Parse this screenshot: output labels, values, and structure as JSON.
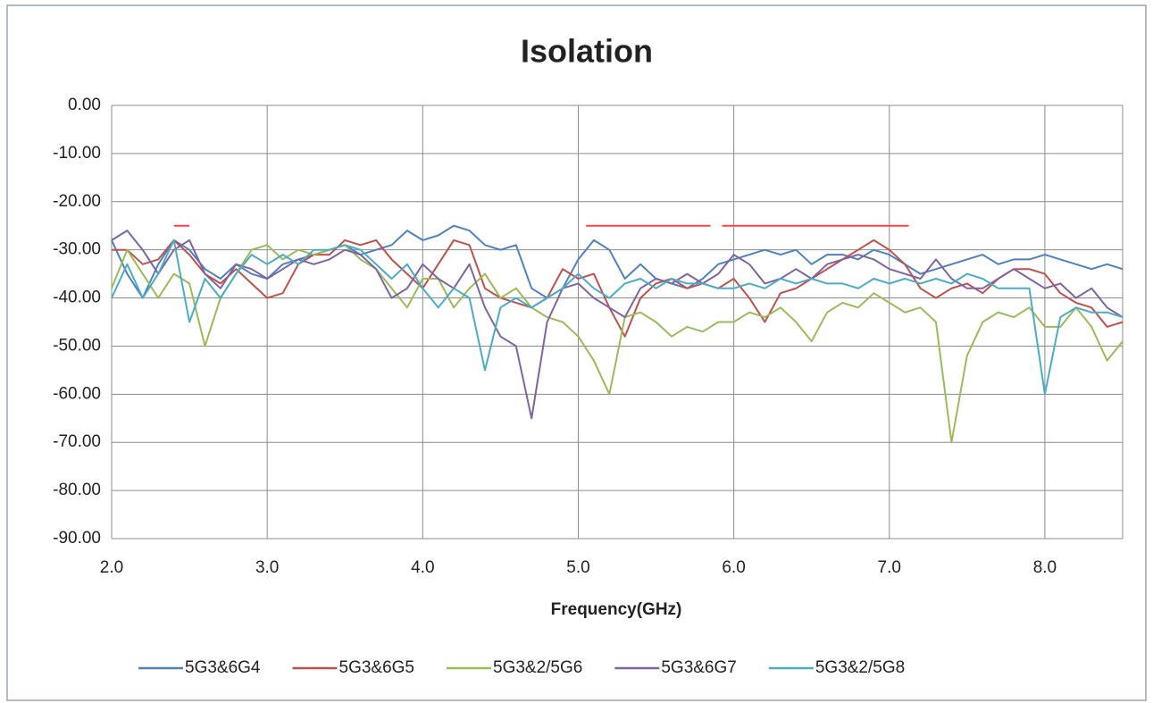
{
  "chart_data": {
    "type": "line",
    "title": "Isolation",
    "x_label": "Frequency(GHz)",
    "xlim": [
      2.0,
      8.5
    ],
    "ylim": [
      -90,
      0
    ],
    "xticks": [
      {
        "value": 2,
        "label": "2.0"
      },
      {
        "value": 3,
        "label": "3.0"
      },
      {
        "value": 4,
        "label": "4.0"
      },
      {
        "value": 5,
        "label": "5.0"
      },
      {
        "value": 6,
        "label": "6.0"
      },
      {
        "value": 7,
        "label": "7.0"
      },
      {
        "value": 8,
        "label": "8.0"
      }
    ],
    "yticks": [
      {
        "value": 0,
        "label": "0.00"
      },
      {
        "value": -10,
        "label": "-10.00"
      },
      {
        "value": -20,
        "label": "-20.00"
      },
      {
        "value": -30,
        "label": "-30.00"
      },
      {
        "value": -40,
        "label": "-40.00"
      },
      {
        "value": -50,
        "label": "-50.00"
      },
      {
        "value": -60,
        "label": "-60.00"
      },
      {
        "value": -70,
        "label": "-70.00"
      },
      {
        "value": -80,
        "label": "-80.00"
      },
      {
        "value": -90,
        "label": "-90.00"
      }
    ],
    "grid": true,
    "legend": "bottom",
    "x": [
      2.0,
      2.1,
      2.2,
      2.3,
      2.4,
      2.5,
      2.6,
      2.7,
      2.8,
      2.9,
      3.0,
      3.1,
      3.2,
      3.3,
      3.4,
      3.5,
      3.6,
      3.7,
      3.8,
      3.9,
      4.0,
      4.1,
      4.2,
      4.3,
      4.4,
      4.5,
      4.6,
      4.7,
      4.8,
      4.9,
      5.0,
      5.1,
      5.2,
      5.3,
      5.4,
      5.5,
      5.6,
      5.7,
      5.8,
      5.9,
      6.0,
      6.1,
      6.2,
      6.3,
      6.4,
      6.5,
      6.6,
      6.7,
      6.8,
      6.9,
      7.0,
      7.1,
      7.2,
      7.3,
      7.4,
      7.5,
      7.6,
      7.7,
      7.8,
      7.9,
      8.0,
      8.1,
      8.2,
      8.3,
      8.4,
      8.5
    ],
    "series": [
      {
        "name": "5G3&6G4",
        "color": "#4f81bd",
        "values": [
          -28,
          -35,
          -40,
          -33,
          -28,
          -30,
          -34,
          -36,
          -33,
          -35,
          -36,
          -33,
          -32,
          -31,
          -30,
          -29,
          -31,
          -30,
          -29,
          -26,
          -28,
          -27,
          -25,
          -26,
          -29,
          -30,
          -29,
          -38,
          -40,
          -38,
          -32,
          -28,
          -30,
          -36,
          -33,
          -36,
          -37,
          -38,
          -36,
          -33,
          -32,
          -31,
          -30,
          -31,
          -30,
          -33,
          -31,
          -31,
          -32,
          -30,
          -31,
          -33,
          -35,
          -34,
          -33,
          -32,
          -31,
          -33,
          -32,
          -32,
          -31,
          -32,
          -33,
          -34,
          -33,
          -34
        ]
      },
      {
        "name": "5G3&6G5",
        "color": "#c0504d",
        "values": [
          -30,
          -30,
          -33,
          -32,
          -28,
          -31,
          -35,
          -37,
          -34,
          -37,
          -40,
          -39,
          -33,
          -31,
          -31,
          -28,
          -29,
          -28,
          -32,
          -35,
          -38,
          -33,
          -28,
          -29,
          -38,
          -40,
          -41,
          -42,
          -40,
          -34,
          -36,
          -35,
          -42,
          -48,
          -40,
          -37,
          -36,
          -38,
          -37,
          -38,
          -36,
          -40,
          -45,
          -39,
          -38,
          -36,
          -34,
          -32,
          -30,
          -28,
          -30,
          -33,
          -38,
          -40,
          -38,
          -37,
          -39,
          -36,
          -34,
          -34,
          -35,
          -39,
          -41,
          -42,
          -46,
          -45
        ]
      },
      {
        "name": "5G3&2/5G6",
        "color": "#9bbb59",
        "values": [
          -38,
          -30,
          -35,
          -40,
          -35,
          -37,
          -50,
          -40,
          -35,
          -30,
          -29,
          -32,
          -30,
          -31,
          -30,
          -29,
          -32,
          -34,
          -38,
          -42,
          -36,
          -36,
          -42,
          -38,
          -35,
          -40,
          -38,
          -42,
          -44,
          -45,
          -48,
          -53,
          -60,
          -44,
          -43,
          -45,
          -48,
          -46,
          -47,
          -45,
          -45,
          -43,
          -44,
          -42,
          -45,
          -49,
          -43,
          -41,
          -42,
          -39,
          -41,
          -43,
          -42,
          -45,
          -70,
          -52,
          -45,
          -43,
          -44,
          -42,
          -46,
          -46,
          -42,
          -46,
          -53,
          -49
        ]
      },
      {
        "name": "5G3&6G7",
        "color": "#8064a2",
        "values": [
          -28,
          -26,
          -30,
          -35,
          -30,
          -28,
          -35,
          -38,
          -33,
          -34,
          -36,
          -34,
          -32,
          -33,
          -32,
          -30,
          -31,
          -34,
          -40,
          -38,
          -33,
          -36,
          -38,
          -33,
          -42,
          -48,
          -50,
          -65,
          -45,
          -38,
          -37,
          -40,
          -42,
          -44,
          -38,
          -36,
          -37,
          -35,
          -37,
          -35,
          -31,
          -33,
          -37,
          -36,
          -34,
          -36,
          -33,
          -32,
          -31,
          -32,
          -34,
          -35,
          -36,
          -32,
          -36,
          -38,
          -38,
          -36,
          -34,
          -36,
          -38,
          -37,
          -40,
          -38,
          -42,
          -44
        ]
      },
      {
        "name": "5G3&2/5G8",
        "color": "#4bacc6",
        "values": [
          -40,
          -33,
          -40,
          -35,
          -28,
          -45,
          -36,
          -40,
          -35,
          -31,
          -33,
          -31,
          -33,
          -30,
          -30,
          -29,
          -30,
          -33,
          -36,
          -33,
          -38,
          -42,
          -38,
          -40,
          -55,
          -42,
          -40,
          -42,
          -40,
          -38,
          -35,
          -38,
          -40,
          -37,
          -36,
          -38,
          -36,
          -37,
          -37,
          -38,
          -38,
          -37,
          -38,
          -36,
          -37,
          -36,
          -37,
          -37,
          -38,
          -36,
          -37,
          -36,
          -37,
          -36,
          -37,
          -35,
          -36,
          -38,
          -38,
          -38,
          -60,
          -44,
          -42,
          -43,
          -43,
          -44
        ]
      }
    ],
    "reference_lines": [
      {
        "color": "#ff4040",
        "x": [
          2.4,
          2.5
        ],
        "values": [
          -25,
          -25
        ]
      },
      {
        "color": "#ff4040",
        "x": [
          5.05,
          5.85
        ],
        "values": [
          -25,
          -25
        ]
      },
      {
        "color": "#ff4040",
        "x": [
          5.925,
          7.125
        ],
        "values": [
          -25,
          -25
        ]
      }
    ]
  }
}
